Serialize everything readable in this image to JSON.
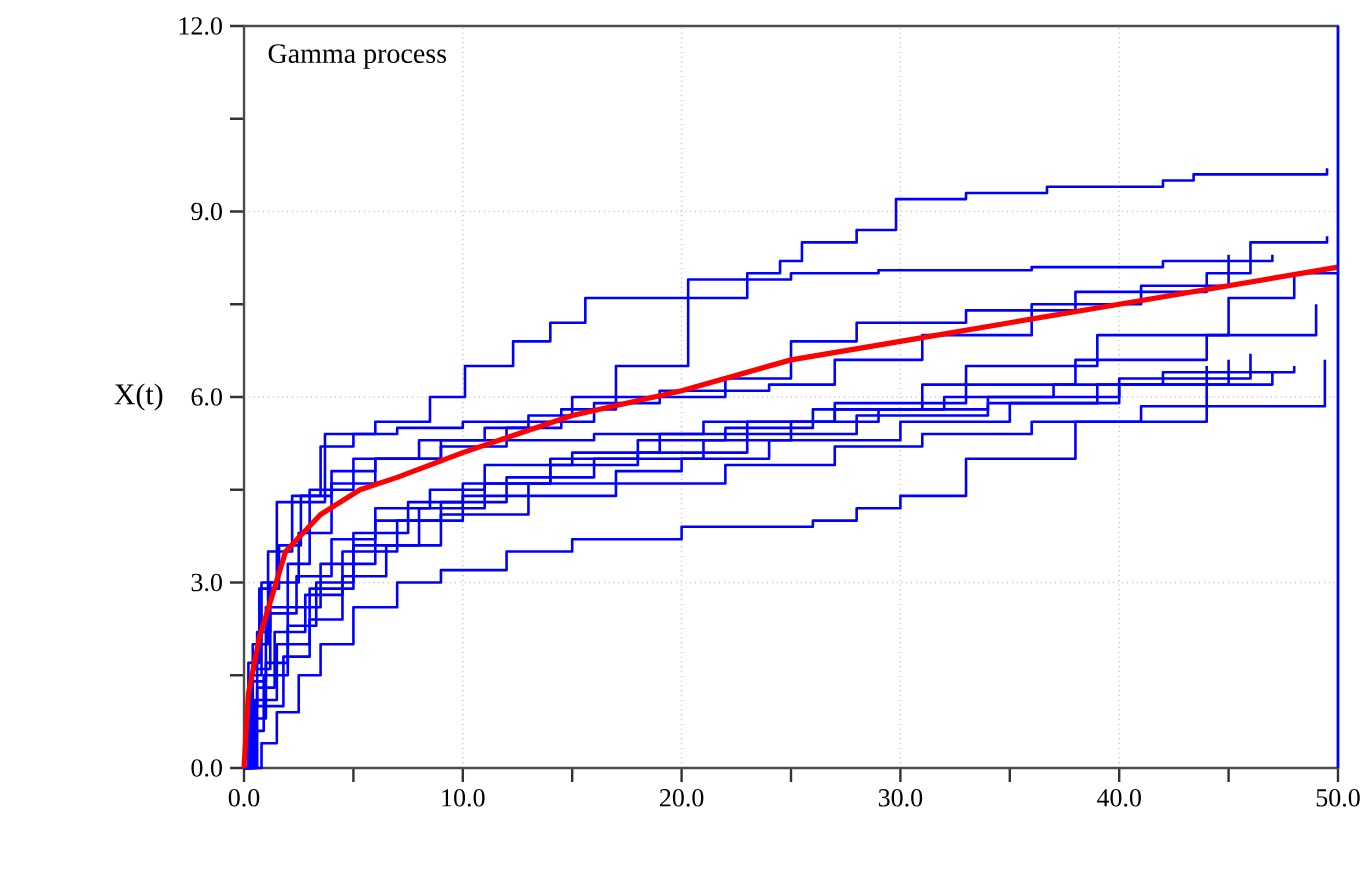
{
  "chart_data": {
    "type": "step",
    "title": "Gamma process",
    "ylabel": "X(t)",
    "xlim": [
      0,
      50
    ],
    "ylim": [
      0,
      12
    ],
    "xticks": [
      {
        "value": 0,
        "label": "0.0"
      },
      {
        "value": 5,
        "label": null
      },
      {
        "value": 10,
        "label": "10.0"
      },
      {
        "value": 15,
        "label": null
      },
      {
        "value": 20,
        "label": "20.0"
      },
      {
        "value": 25,
        "label": null
      },
      {
        "value": 30,
        "label": "30.0"
      },
      {
        "value": 35,
        "label": null
      },
      {
        "value": 40,
        "label": "40.0"
      },
      {
        "value": 45,
        "label": null
      },
      {
        "value": 50,
        "label": "50.0"
      }
    ],
    "yticks": [
      {
        "value": 0,
        "label": "0.0"
      },
      {
        "value": 1.5,
        "label": null
      },
      {
        "value": 3,
        "label": "3.0"
      },
      {
        "value": 4.5,
        "label": null
      },
      {
        "value": 6,
        "label": "6.0"
      },
      {
        "value": 7.5,
        "label": null
      },
      {
        "value": 9,
        "label": "9.0"
      },
      {
        "value": 10.5,
        "label": null
      },
      {
        "value": 12,
        "label": "12.0"
      }
    ],
    "grid": true,
    "marker": "none",
    "ref_lines": [
      {
        "axis": "x",
        "value": 50,
        "color": "#0000ff"
      }
    ],
    "line_style": "solid",
    "series": [
      {
        "color": "#0000ff",
        "x": [
          0,
          0.3,
          0.8,
          1.5,
          3.7,
          6,
          8.5,
          10.1,
          12.3,
          14,
          15.6,
          20,
          23,
          24.5,
          25.5,
          28,
          29.8,
          33,
          36.7,
          42,
          43.4,
          49.5
        ],
        "values": [
          0,
          1.5,
          3.0,
          4.3,
          5.4,
          5.6,
          6.0,
          6.5,
          6.9,
          7.2,
          7.6,
          7.6,
          8.0,
          8.2,
          8.5,
          8.7,
          9.2,
          9.3,
          9.4,
          9.5,
          9.6,
          9.7
        ]
      },
      {
        "color": "#0000ff",
        "x": [
          0,
          0.2,
          0.6,
          1.2,
          2.5,
          4,
          6,
          9,
          12,
          14.5,
          17,
          22,
          25,
          28,
          33,
          38,
          44,
          46,
          49.5
        ],
        "values": [
          0,
          1.0,
          2.2,
          3.0,
          3.8,
          4.6,
          5.0,
          5.3,
          5.5,
          5.8,
          6.0,
          6.3,
          6.9,
          7.2,
          7.4,
          7.7,
          8.0,
          8.5,
          8.6
        ]
      },
      {
        "color": "#0000ff",
        "x": [
          0,
          0.3,
          1,
          2,
          3,
          5,
          8,
          11,
          13,
          16,
          19,
          24,
          27,
          31,
          36,
          41,
          45
        ],
        "values": [
          0,
          1.4,
          2.6,
          3.3,
          4.5,
          5.0,
          5.3,
          5.5,
          5.6,
          5.9,
          6.1,
          6.2,
          6.6,
          7.0,
          7.5,
          7.8,
          8.3
        ]
      },
      {
        "color": "#0000ff",
        "x": [
          0,
          0.4,
          1.1,
          2.2,
          3.5,
          5,
          7,
          10,
          13,
          15,
          17,
          20.3,
          25,
          29,
          36,
          42,
          47
        ],
        "values": [
          0,
          2.0,
          3.5,
          4.4,
          5.2,
          5.4,
          5.5,
          5.6,
          5.7,
          6.0,
          6.5,
          7.9,
          8.0,
          8.05,
          8.1,
          8.2,
          8.3
        ]
      },
      {
        "color": "#0000ff",
        "x": [
          0,
          0.5,
          1.5,
          3,
          5,
          8,
          11,
          14,
          18,
          22,
          26,
          31,
          38,
          44,
          49
        ],
        "values": [
          0,
          1.1,
          2.0,
          2.9,
          3.6,
          4.2,
          4.6,
          5.0,
          5.3,
          5.5,
          5.8,
          6.2,
          6.6,
          7.0,
          7.5
        ]
      },
      {
        "color": "#0000ff",
        "x": [
          0,
          0.3,
          1,
          2,
          3.5,
          6,
          9,
          12,
          16,
          21,
          25,
          29,
          34,
          40,
          46
        ],
        "values": [
          0,
          0.8,
          1.7,
          2.6,
          3.3,
          4.0,
          4.3,
          4.7,
          5.0,
          5.3,
          5.6,
          5.8,
          6.0,
          6.3,
          6.7
        ]
      },
      {
        "color": "#0000ff",
        "x": [
          0,
          0.6,
          1.4,
          2.8,
          4.5,
          7,
          10,
          13,
          17,
          20,
          24,
          30,
          35,
          39,
          45
        ],
        "values": [
          0,
          1.3,
          2.2,
          2.8,
          3.5,
          4.0,
          4.4,
          4.6,
          4.8,
          5.0,
          5.3,
          5.6,
          5.9,
          6.2,
          6.6
        ]
      },
      {
        "color": "#0000ff",
        "x": [
          0,
          0.8,
          1.5,
          2.5,
          3.5,
          5,
          7,
          9,
          12,
          15,
          20,
          26,
          28,
          30,
          33,
          38,
          44
        ],
        "values": [
          0,
          0.4,
          0.9,
          1.5,
          2.0,
          2.6,
          3.0,
          3.2,
          3.5,
          3.7,
          3.9,
          4.0,
          4.2,
          4.4,
          5.0,
          5.6,
          6.5
        ]
      },
      {
        "color": "#0000ff",
        "x": [
          0,
          0.4,
          1.2,
          2.4,
          4,
          6,
          8.5,
          11,
          15,
          19,
          23,
          27,
          32,
          37,
          42,
          48
        ],
        "values": [
          0,
          1.6,
          2.5,
          3.1,
          3.7,
          4.2,
          4.5,
          4.9,
          5.1,
          5.4,
          5.6,
          5.8,
          6.0,
          6.2,
          6.4,
          6.5
        ]
      },
      {
        "color": "#0000ff",
        "x": [
          0,
          0.5,
          1.8,
          3,
          4.5,
          6.5,
          9,
          13,
          17,
          22,
          27,
          31,
          36,
          41,
          49.4
        ],
        "values": [
          0,
          1.0,
          1.8,
          2.4,
          3.1,
          3.6,
          4.1,
          4.4,
          4.6,
          4.9,
          5.2,
          5.4,
          5.6,
          5.85,
          6.6
        ]
      },
      {
        "color": "#0000ff",
        "x": [
          0,
          0.2,
          0.7,
          1.6,
          2.6,
          4,
          6,
          9,
          12,
          16,
          21,
          27,
          33,
          39,
          45,
          48,
          50
        ],
        "values": [
          0,
          1.7,
          2.9,
          3.6,
          4.4,
          4.8,
          5.0,
          5.2,
          5.3,
          5.4,
          5.6,
          5.9,
          6.5,
          7.0,
          7.6,
          8.0,
          8.0
        ]
      },
      {
        "color": "#0000ff",
        "x": [
          0,
          0.3,
          0.9,
          2,
          3.3,
          5,
          7.5,
          10,
          14,
          18,
          23,
          28,
          34,
          40,
          47
        ],
        "values": [
          0,
          0.6,
          1.5,
          2.3,
          3.0,
          3.8,
          4.3,
          4.6,
          4.9,
          5.1,
          5.4,
          5.7,
          5.9,
          6.2,
          6.4
        ]
      },
      {
        "type": "line",
        "color": "#ff0000",
        "x": [
          0,
          0.2,
          0.7,
          1.9,
          3.5,
          5.3,
          7,
          10,
          15,
          20,
          25,
          30,
          35,
          40,
          45,
          50
        ],
        "values": [
          0,
          1.2,
          2.1,
          3.5,
          4.1,
          4.5,
          4.7,
          5.1,
          5.7,
          6.1,
          6.6,
          6.9,
          7.2,
          7.5,
          7.8,
          8.1
        ]
      }
    ]
  }
}
